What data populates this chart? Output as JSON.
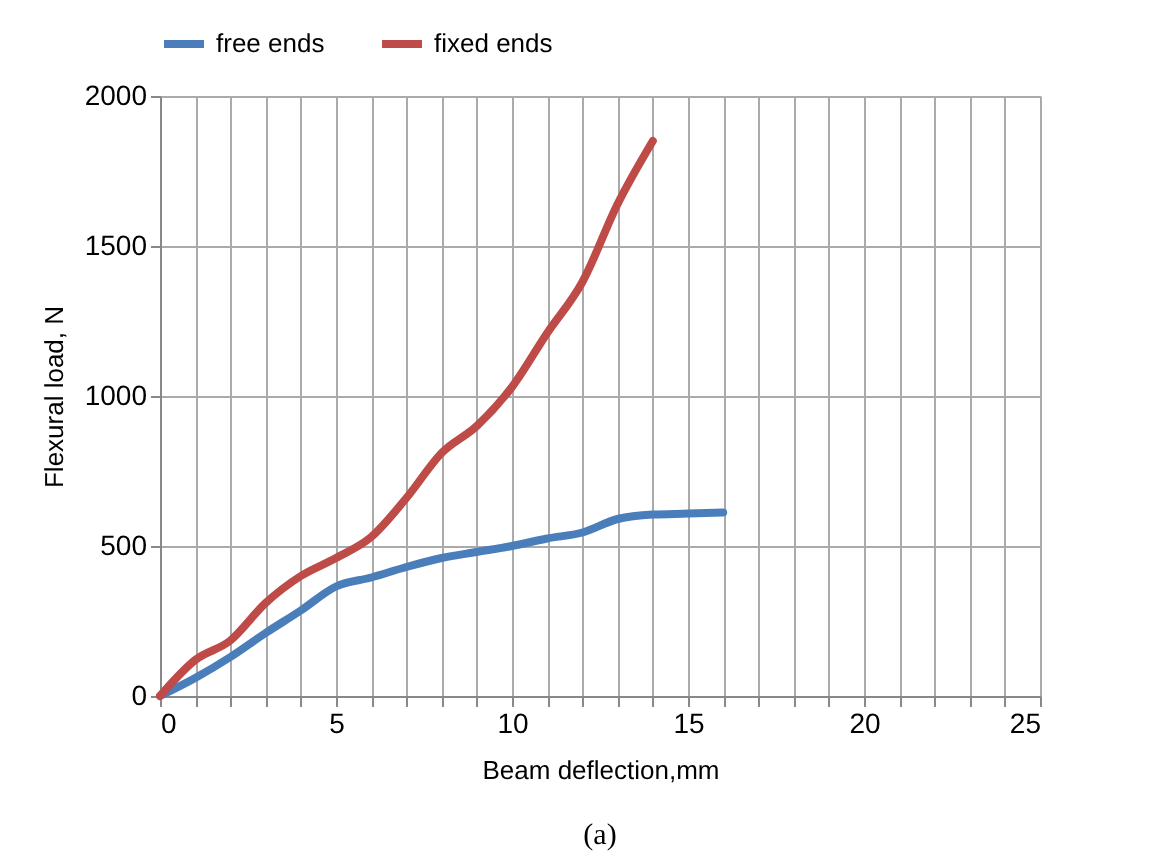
{
  "chart_data": {
    "type": "line",
    "xlabel": "Beam deflection,mm",
    "ylabel": "Flexural load, N",
    "legend": "top",
    "grid": true,
    "marker": "none",
    "line_style": "solid",
    "xlim": [
      0,
      25
    ],
    "ylim": [
      0,
      2000
    ],
    "xticks": [
      0,
      {
        "value": 1,
        "label": null
      },
      {
        "value": 2,
        "label": null
      },
      {
        "value": 3,
        "label": null
      },
      {
        "value": 4,
        "label": null
      },
      5,
      {
        "value": 6,
        "label": null
      },
      {
        "value": 7,
        "label": null
      },
      {
        "value": 8,
        "label": null
      },
      {
        "value": 9,
        "label": null
      },
      10,
      {
        "value": 11,
        "label": null
      },
      {
        "value": 12,
        "label": null
      },
      {
        "value": 13,
        "label": null
      },
      {
        "value": 14,
        "label": null
      },
      15,
      {
        "value": 16,
        "label": null
      },
      {
        "value": 17,
        "label": null
      },
      {
        "value": 18,
        "label": null
      },
      {
        "value": 19,
        "label": null
      },
      20,
      {
        "value": 21,
        "label": null
      },
      {
        "value": 22,
        "label": null
      },
      {
        "value": 23,
        "label": null
      },
      {
        "value": 24,
        "label": null
      },
      25
    ],
    "yticks": [
      0,
      500,
      1000,
      1500,
      2000
    ],
    "annotations": [
      "(a)"
    ],
    "series": [
      {
        "name": "free ends",
        "color": "#4a7ebb",
        "x": [
          0,
          1,
          2,
          3,
          4,
          5,
          6,
          7,
          8,
          9,
          10,
          11,
          12,
          13,
          14,
          15,
          16
        ],
        "values": [
          0,
          60,
          130,
          210,
          285,
          365,
          395,
          430,
          460,
          480,
          500,
          525,
          545,
          590,
          605,
          608,
          612
        ]
      },
      {
        "name": "fixed ends",
        "color": "#be4b48",
        "x": [
          0,
          1,
          2,
          3,
          4,
          5,
          6,
          7,
          8,
          9,
          10,
          11,
          12,
          13,
          14
        ],
        "values": [
          0,
          120,
          185,
          310,
          400,
          460,
          530,
          660,
          810,
          900,
          1030,
          1210,
          1380,
          1640,
          1850
        ]
      }
    ]
  }
}
